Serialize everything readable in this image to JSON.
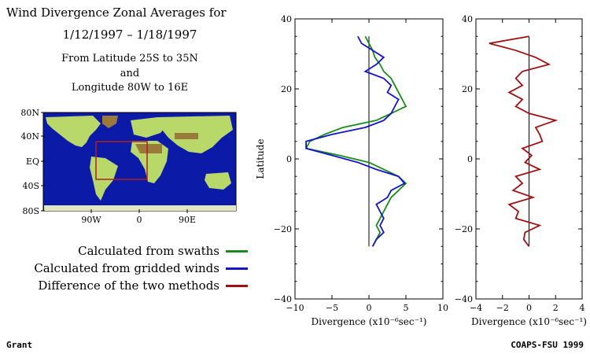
{
  "header": {
    "title_line1": "Wind Divergence Zonal Averages for",
    "title_line2": "1/12/1997 – 1/18/1997",
    "subtitle_line1": "From Latitude 25S to 35N",
    "subtitle_line2": "and",
    "subtitle_line3": "Longitude 80W to 16E"
  },
  "map": {
    "lat_labels": [
      "80N",
      "40N",
      "EQ",
      "40S",
      "80S"
    ],
    "lon_labels": [
      "90W",
      "0",
      "90E"
    ],
    "ocean_color": "#0c1aa8",
    "land_color": "#b8d86a",
    "box_color": "#b02020"
  },
  "legend": [
    {
      "label": "Calculated from swaths",
      "color": "#1a8a1a"
    },
    {
      "label": "Calculated from gridded winds",
      "color": "#1414c8"
    },
    {
      "label": "Difference of the two methods",
      "color": "#a01010"
    }
  ],
  "footer": {
    "left": "Grant",
    "right": "COAPS-FSU 1999"
  },
  "chart_data": [
    {
      "type": "line",
      "ylabel": "Latitude",
      "xlabel": "Divergence (x10⁻⁶sec⁻¹)",
      "xlim": [
        -10,
        10
      ],
      "ylim": [
        -40,
        40
      ],
      "xticks": [
        "−10",
        "−5",
        "0",
        "5",
        "10"
      ],
      "yticks": [
        "−40",
        "−20",
        "0",
        "20",
        "40"
      ],
      "y": [
        35,
        33,
        31,
        29,
        27,
        25,
        23,
        21,
        19,
        17,
        15,
        13,
        11,
        9,
        7,
        5,
        3,
        1,
        -1,
        -3,
        -5,
        -7,
        -9,
        -11,
        -13,
        -15,
        -17,
        -19,
        -21,
        -23,
        -25
      ],
      "series": [
        {
          "name": "Calculated from swaths",
          "color": "#1a8a1a",
          "values": [
            -0.5,
            0,
            0.5,
            0.8,
            1.5,
            2,
            3,
            3.5,
            4,
            4.5,
            5,
            3,
            1,
            -3.5,
            -6,
            -8,
            -8.5,
            -4,
            0,
            2,
            4,
            5,
            4,
            3,
            2.5,
            2,
            1.5,
            1,
            1.5,
            1,
            0.5
          ]
        },
        {
          "name": "Calculated from gridded winds",
          "color": "#1414c8",
          "values": [
            -1.5,
            -1,
            0.5,
            2,
            1,
            -0.5,
            2,
            3,
            2.5,
            4,
            3.5,
            3,
            2,
            -0.5,
            -5,
            -8.5,
            -8.5,
            -5,
            -1.5,
            1,
            4,
            4.8,
            3,
            2.5,
            1,
            1.5,
            2,
            1.5,
            2,
            1,
            0.5
          ]
        }
      ]
    },
    {
      "type": "line",
      "xlabel": "Divergence (x10⁻⁶sec⁻¹)",
      "xlim": [
        -4,
        4
      ],
      "ylim": [
        -40,
        40
      ],
      "xticks": [
        "−4",
        "−2",
        "0",
        "2",
        "4"
      ],
      "yticks": [
        "−40",
        "−20",
        "0",
        "20",
        "40"
      ],
      "y": [
        35,
        33,
        31,
        29,
        27,
        25,
        23,
        21,
        19,
        17,
        15,
        13,
        11,
        9,
        7,
        5,
        3,
        1,
        -1,
        -3,
        -5,
        -7,
        -9,
        -11,
        -13,
        -15,
        -17,
        -19,
        -21,
        -23,
        -25
      ],
      "series": [
        {
          "name": "Difference of the two methods",
          "color": "#a01010",
          "values": [
            0,
            -3,
            -1,
            0.5,
            1.5,
            -0.5,
            -1,
            -0.5,
            -1.5,
            -0.5,
            -1,
            0,
            2,
            0.5,
            0.8,
            1,
            -0.5,
            0.2,
            -0.3,
            0.8,
            -1,
            -0.5,
            -1.2,
            0.3,
            -1.5,
            -0.8,
            -1,
            0.8,
            -0.3,
            -0.4,
            0
          ]
        }
      ]
    }
  ]
}
